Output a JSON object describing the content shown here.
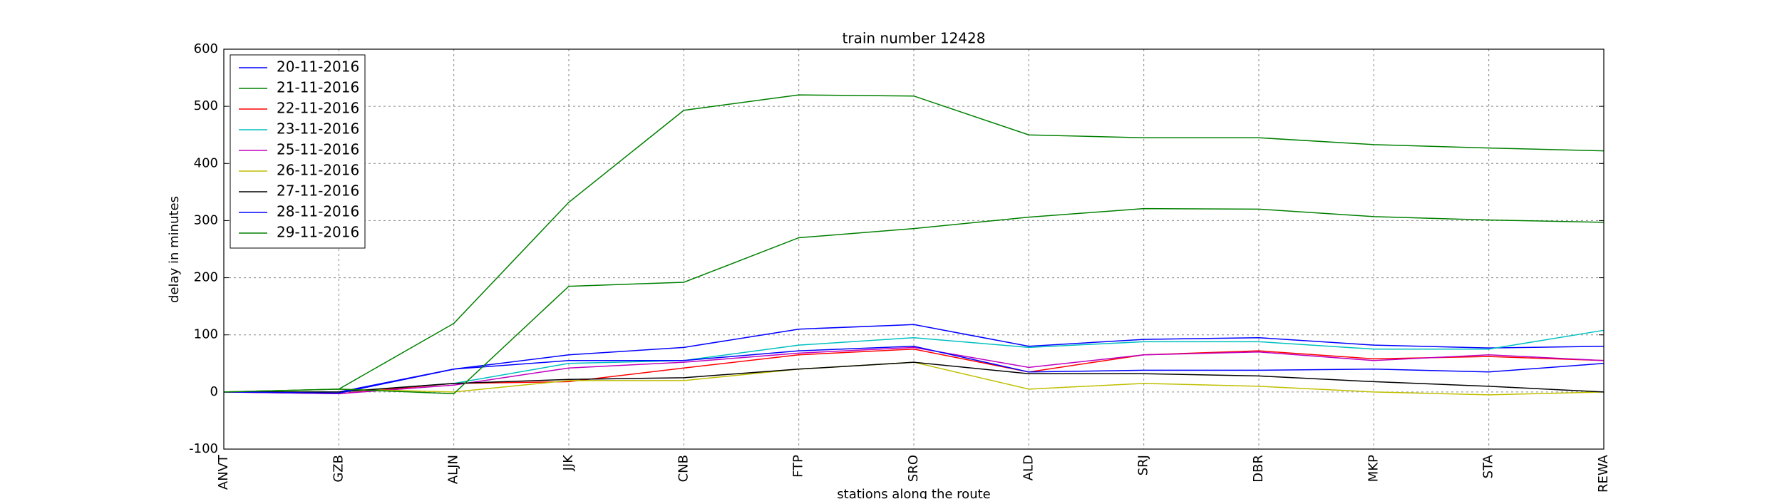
{
  "chart_data": {
    "type": "line",
    "title": "train number 12428",
    "x_label": "stations along the route",
    "y_label": "delay in minutes",
    "categories": [
      "ANVT",
      "GZB",
      "ALJN",
      "JJK",
      "CNB",
      "FTP",
      "SRO",
      "ALD",
      "SRJ",
      "DBR",
      "MKP",
      "STA",
      "REWA"
    ],
    "series": [
      {
        "name": "20-11-2016",
        "color": "#0000ff",
        "values": [
          0,
          0,
          40,
          65,
          78,
          110,
          118,
          80,
          92,
          95,
          82,
          77,
          80
        ]
      },
      {
        "name": "21-11-2016",
        "color": "#008000",
        "values": [
          0,
          5,
          120,
          332,
          493,
          520,
          518,
          450,
          445,
          445,
          433,
          427,
          422
        ]
      },
      {
        "name": "22-11-2016",
        "color": "#ff0000",
        "values": [
          0,
          -3,
          15,
          18,
          42,
          65,
          75,
          35,
          65,
          72,
          58,
          62,
          55
        ]
      },
      {
        "name": "23-11-2016",
        "color": "#00bfbf",
        "values": [
          0,
          0,
          15,
          50,
          55,
          82,
          95,
          78,
          88,
          88,
          75,
          75,
          108
        ]
      },
      {
        "name": "25-11-2016",
        "color": "#bf00bf",
        "values": [
          0,
          -3,
          12,
          42,
          52,
          68,
          78,
          43,
          65,
          70,
          55,
          65,
          55
        ]
      },
      {
        "name": "26-11-2016",
        "color": "#bfbf00",
        "values": [
          0,
          5,
          0,
          20,
          20,
          40,
          52,
          5,
          15,
          10,
          0,
          -5,
          0
        ]
      },
      {
        "name": "27-11-2016",
        "color": "#000000",
        "values": [
          0,
          0,
          15,
          22,
          25,
          40,
          52,
          32,
          32,
          28,
          18,
          10,
          0
        ]
      },
      {
        "name": "28-11-2016",
        "color": "#0000ff",
        "values": [
          0,
          -2,
          40,
          55,
          55,
          72,
          80,
          35,
          38,
          38,
          40,
          35,
          50
        ]
      },
      {
        "name": "29-11-2016",
        "color": "#008000",
        "values": [
          0,
          5,
          -3,
          185,
          192,
          270,
          286,
          306,
          321,
          320,
          307,
          301,
          297
        ]
      }
    ],
    "ylim": [
      -100,
      600
    ],
    "yticks": [
      -100,
      0,
      100,
      200,
      300,
      400,
      500,
      600
    ],
    "grid": true,
    "legend": "upper-left"
  }
}
